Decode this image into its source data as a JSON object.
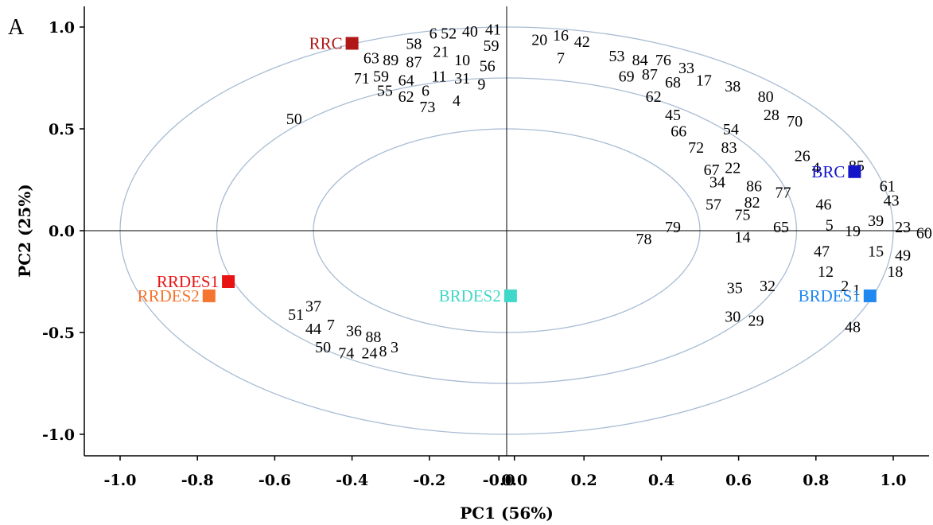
{
  "panel_label": "A",
  "chart_data": {
    "type": "scatter",
    "xlabel": "PC1 (56%)",
    "ylabel": "PC2 (25%)",
    "xlim": [
      -1.1,
      1.1
    ],
    "ylim": [
      -1.1,
      1.1
    ],
    "x_ticks": [
      "-1.0",
      "-0.8",
      "-0.6",
      "-0.4",
      "-0.2",
      "-0.0",
      "0.0",
      "0.2",
      "0.4",
      "0.6",
      "0.8",
      "1.0"
    ],
    "x_tick_values": [
      -1.0,
      -0.8,
      -0.6,
      -0.4,
      -0.2,
      -0.02,
      0.02,
      0.2,
      0.4,
      0.6,
      0.8,
      1.0
    ],
    "y_ticks": [
      "1.0",
      "0.5",
      "0.0",
      "-0.5",
      "-1.0"
    ],
    "y_tick_values": [
      1.0,
      0.5,
      0.0,
      -0.5,
      -1.0
    ],
    "ellipses_rx": [
      1.0,
      0.75,
      0.5
    ],
    "grid": false,
    "legend": "none",
    "samples": [
      {
        "label": "RRC",
        "x": -0.4,
        "y": 0.92,
        "color": "#b01818"
      },
      {
        "label": "BRC",
        "x": 0.9,
        "y": 0.29,
        "color": "#1414c8"
      },
      {
        "label": "RRDES1",
        "x": -0.72,
        "y": -0.25,
        "color": "#e81414"
      },
      {
        "label": "RRDES2",
        "x": -0.77,
        "y": -0.32,
        "color": "#f5742e"
      },
      {
        "label": "BRDES2",
        "x": 0.01,
        "y": -0.32,
        "color": "#40d8c8"
      },
      {
        "label": "BRDES1",
        "x": 0.94,
        "y": -0.32,
        "color": "#1e88f0"
      }
    ],
    "variables": [
      {
        "label": "6",
        "x": -0.19,
        "y": 0.97
      },
      {
        "label": "52",
        "x": -0.15,
        "y": 0.97
      },
      {
        "label": "40",
        "x": -0.095,
        "y": 0.98
      },
      {
        "label": "41",
        "x": -0.035,
        "y": 0.99
      },
      {
        "label": "58",
        "x": -0.24,
        "y": 0.92
      },
      {
        "label": "59",
        "x": -0.04,
        "y": 0.91
      },
      {
        "label": "21",
        "x": -0.17,
        "y": 0.88
      },
      {
        "label": "63",
        "x": -0.35,
        "y": 0.85
      },
      {
        "label": "89",
        "x": -0.3,
        "y": 0.84
      },
      {
        "label": "87",
        "x": -0.24,
        "y": 0.83
      },
      {
        "label": "10",
        "x": -0.115,
        "y": 0.84
      },
      {
        "label": "56",
        "x": -0.05,
        "y": 0.81
      },
      {
        "label": "71",
        "x": -0.375,
        "y": 0.75
      },
      {
        "label": "59",
        "x": -0.325,
        "y": 0.76
      },
      {
        "label": "64",
        "x": -0.26,
        "y": 0.74
      },
      {
        "label": "11",
        "x": -0.175,
        "y": 0.76
      },
      {
        "label": "31",
        "x": -0.115,
        "y": 0.75
      },
      {
        "label": "9",
        "x": -0.065,
        "y": 0.72
      },
      {
        "label": "55",
        "x": -0.315,
        "y": 0.69
      },
      {
        "label": "6",
        "x": -0.21,
        "y": 0.69
      },
      {
        "label": "62",
        "x": -0.26,
        "y": 0.66
      },
      {
        "label": "73",
        "x": -0.205,
        "y": 0.61
      },
      {
        "label": "4",
        "x": -0.13,
        "y": 0.64
      },
      {
        "label": "50",
        "x": -0.55,
        "y": 0.55
      },
      {
        "label": "20",
        "x": 0.085,
        "y": 0.94
      },
      {
        "label": "16",
        "x": 0.14,
        "y": 0.96
      },
      {
        "label": "42",
        "x": 0.195,
        "y": 0.93
      },
      {
        "label": "7",
        "x": 0.14,
        "y": 0.85
      },
      {
        "label": "53",
        "x": 0.285,
        "y": 0.86
      },
      {
        "label": "84",
        "x": 0.345,
        "y": 0.84
      },
      {
        "label": "76",
        "x": 0.405,
        "y": 0.84
      },
      {
        "label": "33",
        "x": 0.465,
        "y": 0.8
      },
      {
        "label": "69",
        "x": 0.31,
        "y": 0.76
      },
      {
        "label": "87",
        "x": 0.37,
        "y": 0.77
      },
      {
        "label": "68",
        "x": 0.43,
        "y": 0.73
      },
      {
        "label": "17",
        "x": 0.51,
        "y": 0.74
      },
      {
        "label": "38",
        "x": 0.585,
        "y": 0.71
      },
      {
        "label": "62",
        "x": 0.38,
        "y": 0.66
      },
      {
        "label": "80",
        "x": 0.67,
        "y": 0.66
      },
      {
        "label": "45",
        "x": 0.43,
        "y": 0.57
      },
      {
        "label": "28",
        "x": 0.685,
        "y": 0.57
      },
      {
        "label": "70",
        "x": 0.745,
        "y": 0.54
      },
      {
        "label": "66",
        "x": 0.445,
        "y": 0.49
      },
      {
        "label": "54",
        "x": 0.58,
        "y": 0.5
      },
      {
        "label": "72",
        "x": 0.49,
        "y": 0.41
      },
      {
        "label": "83",
        "x": 0.575,
        "y": 0.41
      },
      {
        "label": "26",
        "x": 0.765,
        "y": 0.37
      },
      {
        "label": "4",
        "x": 0.8,
        "y": 0.31
      },
      {
        "label": "85",
        "x": 0.905,
        "y": 0.32
      },
      {
        "label": "67",
        "x": 0.53,
        "y": 0.3
      },
      {
        "label": "22",
        "x": 0.585,
        "y": 0.31
      },
      {
        "label": "61",
        "x": 0.985,
        "y": 0.22
      },
      {
        "label": "34",
        "x": 0.545,
        "y": 0.24
      },
      {
        "label": "86",
        "x": 0.64,
        "y": 0.22
      },
      {
        "label": "77",
        "x": 0.715,
        "y": 0.19
      },
      {
        "label": "43",
        "x": 0.995,
        "y": 0.15
      },
      {
        "label": "46",
        "x": 0.82,
        "y": 0.13
      },
      {
        "label": "57",
        "x": 0.535,
        "y": 0.13
      },
      {
        "label": "82",
        "x": 0.635,
        "y": 0.14
      },
      {
        "label": "75",
        "x": 0.61,
        "y": 0.08
      },
      {
        "label": "39",
        "x": 0.955,
        "y": 0.05
      },
      {
        "label": "5",
        "x": 0.835,
        "y": 0.03
      },
      {
        "label": "65",
        "x": 0.71,
        "y": 0.02
      },
      {
        "label": "79",
        "x": 0.43,
        "y": 0.02
      },
      {
        "label": "23",
        "x": 1.025,
        "y": 0.02
      },
      {
        "label": "19",
        "x": 0.895,
        "y": 0.0
      },
      {
        "label": "60",
        "x": 1.08,
        "y": -0.01
      },
      {
        "label": "14",
        "x": 0.61,
        "y": -0.03
      },
      {
        "label": "78",
        "x": 0.355,
        "y": -0.04
      },
      {
        "label": "47",
        "x": 0.815,
        "y": -0.1
      },
      {
        "label": "15",
        "x": 0.955,
        "y": -0.1
      },
      {
        "label": "49",
        "x": 1.025,
        "y": -0.12
      },
      {
        "label": "12",
        "x": 0.825,
        "y": -0.2
      },
      {
        "label": "18",
        "x": 1.005,
        "y": -0.2
      },
      {
        "label": "35",
        "x": 0.59,
        "y": -0.28
      },
      {
        "label": "32",
        "x": 0.675,
        "y": -0.27
      },
      {
        "label": "2",
        "x": 0.875,
        "y": -0.27
      },
      {
        "label": "1",
        "x": 0.905,
        "y": -0.29
      },
      {
        "label": "30",
        "x": 0.585,
        "y": -0.42
      },
      {
        "label": "29",
        "x": 0.645,
        "y": -0.44
      },
      {
        "label": "48",
        "x": 0.895,
        "y": -0.47
      },
      {
        "label": "51",
        "x": -0.545,
        "y": -0.41
      },
      {
        "label": "37",
        "x": -0.5,
        "y": -0.37
      },
      {
        "label": "44",
        "x": -0.5,
        "y": -0.48
      },
      {
        "label": "7",
        "x": -0.455,
        "y": -0.46
      },
      {
        "label": "36",
        "x": -0.395,
        "y": -0.49
      },
      {
        "label": "88",
        "x": -0.345,
        "y": -0.52
      },
      {
        "label": "3",
        "x": -0.29,
        "y": -0.57
      },
      {
        "label": "50",
        "x": -0.475,
        "y": -0.57
      },
      {
        "label": "74",
        "x": -0.415,
        "y": -0.6
      },
      {
        "label": "24",
        "x": -0.355,
        "y": -0.6
      },
      {
        "label": "8",
        "x": -0.32,
        "y": -0.59
      }
    ]
  }
}
